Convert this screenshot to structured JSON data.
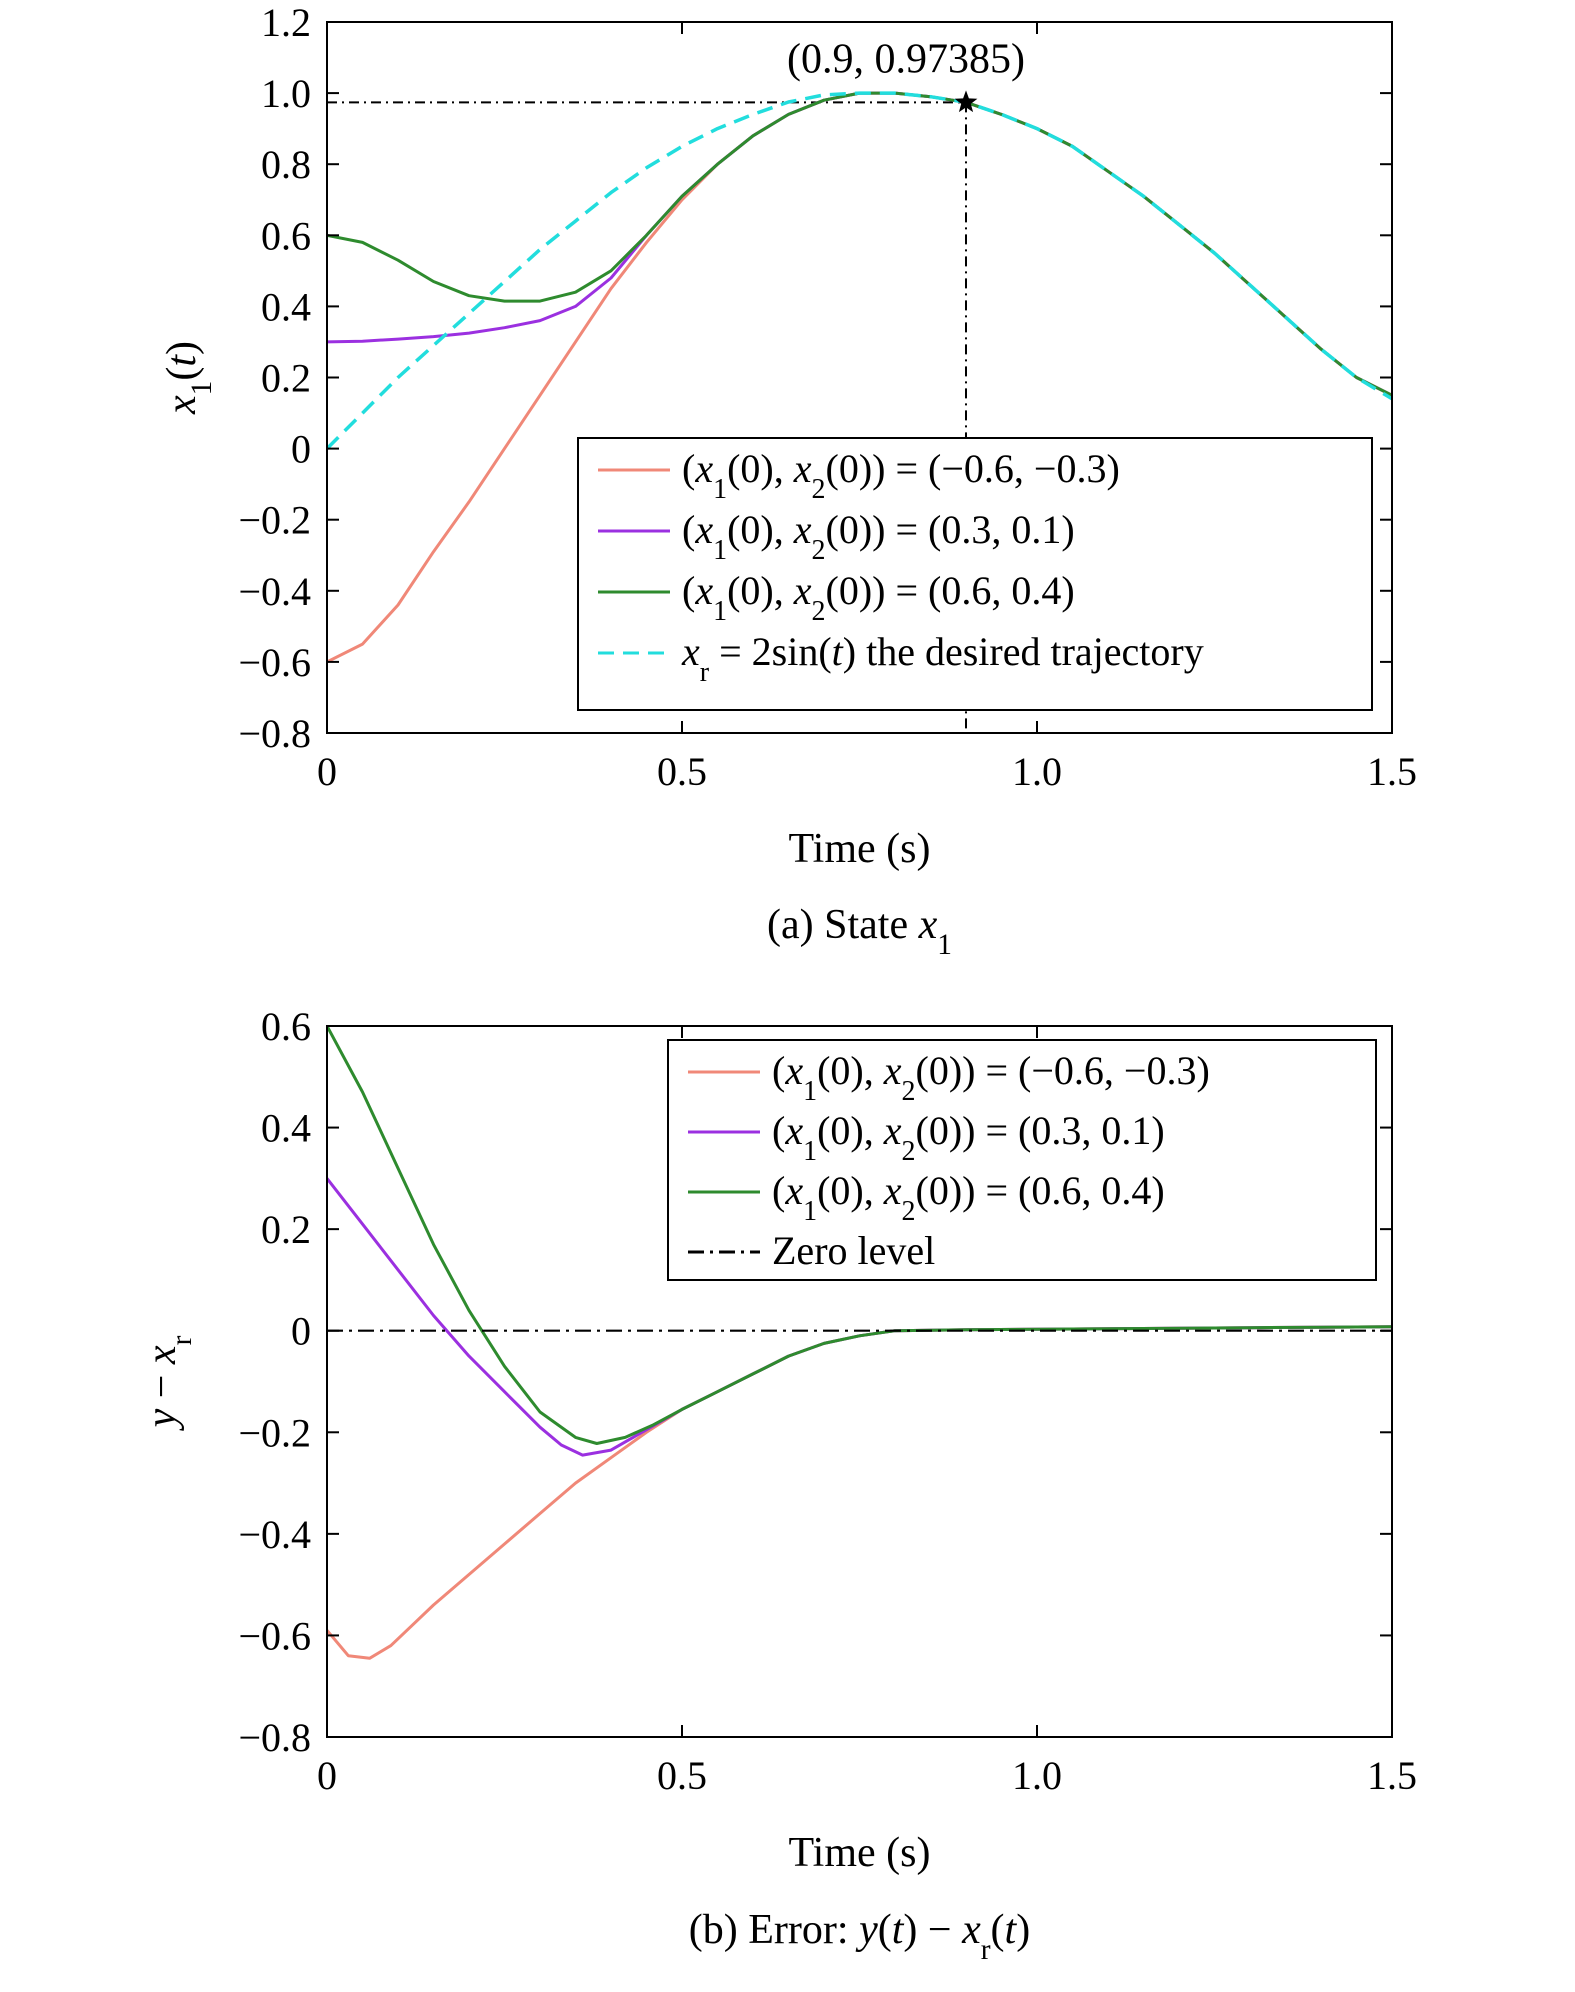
{
  "colors": {
    "series1": "#f08878",
    "series2": "#9b30e0",
    "series3": "#2e8b2e",
    "reference": "#22dddd",
    "guide": "#000000"
  },
  "chart_data": [
    {
      "type": "line",
      "caption_prefix": "(a) State ",
      "caption_var": "x",
      "caption_sub": "1",
      "xlabel": "Time (s)",
      "ylabel_var": "x",
      "ylabel_sub": "1",
      "ylabel_suffix": "(t)",
      "xlim": [
        0,
        1.5
      ],
      "ylim": [
        -0.8,
        1.2
      ],
      "xticks": [
        0,
        0.5,
        1.0,
        1.5
      ],
      "xtick_labels": [
        "0",
        "0.5",
        "1.0",
        "1.5"
      ],
      "yticks": [
        -0.8,
        -0.6,
        -0.4,
        -0.2,
        0,
        0.2,
        0.4,
        0.6,
        0.8,
        1.0,
        1.2
      ],
      "ytick_labels": [
        "−0.8",
        "−0.6",
        "−0.4",
        "−0.2",
        "0",
        "0.2",
        "0.4",
        "0.6",
        "0.8",
        "1.0",
        "1.2"
      ],
      "legend_position": "lower-right",
      "annotation": {
        "x": 0.9,
        "y": 0.97385,
        "text": "(0.9, 0.97385)"
      },
      "series": [
        {
          "name": "(x1(0), x2(0)) = (−0.6, −0.3)",
          "legend_parts": [
            "(",
            "x",
            "1",
            "(0), ",
            "x",
            "2",
            "(0)) = (−0.6, −0.3)"
          ],
          "style": "solid",
          "x": [
            0,
            0.05,
            0.1,
            0.15,
            0.2,
            0.25,
            0.3,
            0.35,
            0.4,
            0.45,
            0.5,
            0.55,
            0.6,
            0.65,
            0.7,
            0.75,
            0.8,
            0.85,
            0.9,
            0.95,
            1.0,
            1.05,
            1.1,
            1.15,
            1.2,
            1.25,
            1.3,
            1.35,
            1.4,
            1.45,
            1.5
          ],
          "y": [
            -0.6,
            -0.55,
            -0.44,
            -0.29,
            -0.15,
            0.0,
            0.15,
            0.3,
            0.45,
            0.58,
            0.7,
            0.8,
            0.88,
            0.94,
            0.98,
            1.0,
            1.0,
            0.99,
            0.974,
            0.94,
            0.9,
            0.85,
            0.78,
            0.71,
            0.63,
            0.55,
            0.46,
            0.37,
            0.28,
            0.2,
            0.15
          ]
        },
        {
          "name": "(x1(0), x2(0)) = (0.3, 0.1)",
          "legend_parts": [
            "(",
            "x",
            "1",
            "(0), ",
            "x",
            "2",
            "(0)) = (0.3, 0.1)"
          ],
          "style": "solid",
          "x": [
            0,
            0.05,
            0.1,
            0.15,
            0.2,
            0.25,
            0.3,
            0.35,
            0.4,
            0.45,
            0.5,
            0.55,
            0.6,
            0.65,
            0.7,
            0.75,
            0.8,
            0.85,
            0.9,
            0.95,
            1.0,
            1.05,
            1.1,
            1.15,
            1.2,
            1.25,
            1.3,
            1.35,
            1.4,
            1.45,
            1.5
          ],
          "y": [
            0.3,
            0.302,
            0.308,
            0.315,
            0.325,
            0.34,
            0.36,
            0.4,
            0.48,
            0.6,
            0.71,
            0.8,
            0.88,
            0.94,
            0.98,
            1.0,
            1.0,
            0.99,
            0.974,
            0.94,
            0.9,
            0.85,
            0.78,
            0.71,
            0.63,
            0.55,
            0.46,
            0.37,
            0.28,
            0.2,
            0.15
          ]
        },
        {
          "name": "(x1(0), x2(0)) = (0.6, 0.4)",
          "legend_parts": [
            "(",
            "x",
            "1",
            "(0), ",
            "x",
            "2",
            "(0)) = (0.6, 0.4)"
          ],
          "style": "solid",
          "x": [
            0,
            0.05,
            0.1,
            0.15,
            0.2,
            0.25,
            0.3,
            0.35,
            0.4,
            0.45,
            0.5,
            0.55,
            0.6,
            0.65,
            0.7,
            0.75,
            0.8,
            0.85,
            0.9,
            0.95,
            1.0,
            1.05,
            1.1,
            1.15,
            1.2,
            1.25,
            1.3,
            1.35,
            1.4,
            1.45,
            1.5
          ],
          "y": [
            0.6,
            0.58,
            0.53,
            0.47,
            0.43,
            0.415,
            0.415,
            0.44,
            0.5,
            0.6,
            0.71,
            0.8,
            0.88,
            0.94,
            0.98,
            1.0,
            1.0,
            0.99,
            0.974,
            0.94,
            0.9,
            0.85,
            0.78,
            0.71,
            0.63,
            0.55,
            0.46,
            0.37,
            0.28,
            0.2,
            0.15
          ]
        },
        {
          "name": "xr = 2sin(t) the desired trajectory",
          "legend_parts": [
            "",
            "x",
            "r",
            " = 2sin(",
            "t",
            "",
            ") the desired trajectory"
          ],
          "style": "dashed",
          "x": [
            0,
            0.05,
            0.1,
            0.15,
            0.2,
            0.25,
            0.3,
            0.35,
            0.4,
            0.45,
            0.5,
            0.55,
            0.6,
            0.65,
            0.7,
            0.75,
            0.8,
            0.85,
            0.9,
            0.95,
            1.0,
            1.05,
            1.1,
            1.15,
            1.2,
            1.25,
            1.3,
            1.35,
            1.4,
            1.45,
            1.5
          ],
          "y": [
            0.0,
            0.1,
            0.2,
            0.29,
            0.38,
            0.47,
            0.56,
            0.64,
            0.72,
            0.79,
            0.85,
            0.9,
            0.94,
            0.975,
            0.995,
            1.0,
            1.0,
            0.99,
            0.974,
            0.94,
            0.9,
            0.85,
            0.78,
            0.71,
            0.63,
            0.55,
            0.46,
            0.37,
            0.28,
            0.2,
            0.14
          ]
        }
      ]
    },
    {
      "type": "line",
      "caption_prefix": "(b) Error: ",
      "caption_parts": [
        "y",
        "(",
        "t",
        ") − ",
        "x",
        "r",
        "(",
        "t",
        ")"
      ],
      "xlabel": "Time (s)",
      "ylabel_parts": [
        "y",
        " − ",
        "x",
        "r"
      ],
      "xlim": [
        0,
        1.5
      ],
      "ylim": [
        -0.8,
        0.6
      ],
      "xticks": [
        0,
        0.5,
        1.0,
        1.5
      ],
      "xtick_labels": [
        "0",
        "0.5",
        "1.0",
        "1.5"
      ],
      "yticks": [
        -0.8,
        -0.6,
        -0.4,
        -0.2,
        0,
        0.2,
        0.4,
        0.6
      ],
      "ytick_labels": [
        "−0.8",
        "−0.6",
        "−0.4",
        "−0.2",
        "0",
        "0.2",
        "0.4",
        "0.6"
      ],
      "legend_position": "upper-right",
      "series": [
        {
          "name": "(x1(0), x2(0)) = (−0.6, −0.3)",
          "legend_parts": [
            "(",
            "x",
            "1",
            "(0), ",
            "x",
            "2",
            "(0)) = (−0.6, −0.3)"
          ],
          "style": "solid",
          "x": [
            0,
            0.03,
            0.06,
            0.09,
            0.12,
            0.15,
            0.2,
            0.25,
            0.3,
            0.35,
            0.4,
            0.45,
            0.5,
            0.55,
            0.6,
            0.65,
            0.7,
            0.75,
            0.8,
            0.9,
            1.0,
            1.1,
            1.2,
            1.3,
            1.4,
            1.5
          ],
          "y": [
            -0.59,
            -0.64,
            -0.645,
            -0.62,
            -0.58,
            -0.54,
            -0.48,
            -0.42,
            -0.36,
            -0.3,
            -0.25,
            -0.2,
            -0.155,
            -0.12,
            -0.085,
            -0.05,
            -0.025,
            -0.01,
            0.0,
            0.002,
            0.003,
            0.004,
            0.005,
            0.006,
            0.007,
            0.008
          ]
        },
        {
          "name": "(x1(0), x2(0)) = (0.3, 0.1)",
          "legend_parts": [
            "(",
            "x",
            "1",
            "(0), ",
            "x",
            "2",
            "(0)) = (0.3, 0.1)"
          ],
          "style": "solid",
          "x": [
            0,
            0.05,
            0.1,
            0.15,
            0.2,
            0.25,
            0.3,
            0.33,
            0.36,
            0.4,
            0.45,
            0.5,
            0.55,
            0.6,
            0.65,
            0.7,
            0.75,
            0.8,
            0.9,
            1.0,
            1.1,
            1.2,
            1.3,
            1.4,
            1.5
          ],
          "y": [
            0.3,
            0.21,
            0.12,
            0.03,
            -0.05,
            -0.12,
            -0.19,
            -0.225,
            -0.245,
            -0.235,
            -0.195,
            -0.155,
            -0.12,
            -0.085,
            -0.05,
            -0.025,
            -0.01,
            0.0,
            0.002,
            0.003,
            0.004,
            0.005,
            0.006,
            0.007,
            0.008
          ]
        },
        {
          "name": "(x1(0), x2(0)) = (0.6, 0.4)",
          "legend_parts": [
            "(",
            "x",
            "1",
            "(0), ",
            "x",
            "2",
            "(0)) = (0.6, 0.4)"
          ],
          "style": "solid",
          "x": [
            0,
            0.05,
            0.1,
            0.15,
            0.2,
            0.25,
            0.3,
            0.35,
            0.38,
            0.42,
            0.46,
            0.5,
            0.55,
            0.6,
            0.65,
            0.7,
            0.75,
            0.8,
            0.9,
            1.0,
            1.1,
            1.2,
            1.3,
            1.4,
            1.5
          ],
          "y": [
            0.6,
            0.47,
            0.32,
            0.17,
            0.04,
            -0.07,
            -0.16,
            -0.21,
            -0.222,
            -0.21,
            -0.185,
            -0.155,
            -0.12,
            -0.085,
            -0.05,
            -0.025,
            -0.01,
            0.0,
            0.002,
            0.003,
            0.004,
            0.005,
            0.006,
            0.007,
            0.008
          ]
        },
        {
          "name": "Zero level",
          "legend_parts": [
            "Zero level"
          ],
          "style": "dashdot",
          "x": [
            0,
            1.5
          ],
          "y": [
            0,
            0
          ]
        }
      ]
    }
  ]
}
